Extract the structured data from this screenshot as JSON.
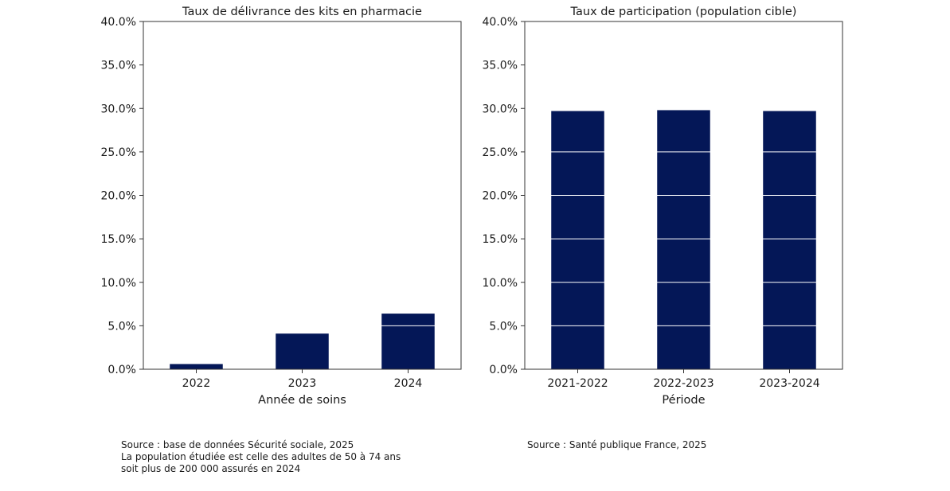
{
  "colors": {
    "bar": "#041757",
    "axis": "#333333",
    "grid_on_bar": "#ffffff"
  },
  "chart_data": [
    {
      "type": "bar",
      "title": "Taux de délivrance des kits en pharmacie",
      "xlabel": "Année de soins",
      "ylabel": "",
      "categories": [
        "2022",
        "2023",
        "2024"
      ],
      "values": [
        0.6,
        4.1,
        6.4
      ],
      "ylim": [
        0,
        40
      ],
      "yticks": [
        0,
        5,
        10,
        15,
        20,
        25,
        30,
        35,
        40
      ],
      "ytick_labels": [
        "0.0%",
        "5.0%",
        "10.0%",
        "15.0%",
        "20.0%",
        "25.0%",
        "30.0%",
        "35.0%",
        "40.0%"
      ],
      "grid": "y-lines visible over bars"
    },
    {
      "type": "bar",
      "title": "Taux de participation (population cible)",
      "xlabel": "Période",
      "ylabel": "",
      "categories": [
        "2021-2022",
        "2022-2023",
        "2023-2024"
      ],
      "values": [
        29.7,
        29.8,
        29.7
      ],
      "ylim": [
        0,
        40
      ],
      "yticks": [
        0,
        5,
        10,
        15,
        20,
        25,
        30,
        35,
        40
      ],
      "ytick_labels": [
        "0.0%",
        "5.0%",
        "10.0%",
        "15.0%",
        "20.0%",
        "25.0%",
        "30.0%",
        "35.0%",
        "40.0%"
      ],
      "grid": "y-lines visible over bars"
    }
  ],
  "notes": {
    "left": [
      "Source : base de données Sécurité sociale, 2025",
      "La population étudiée est celle des adultes de 50 à 74 ans",
      "soit plus de 200 000 assurés en 2024"
    ],
    "right": [
      "Source : Santé publique France, 2025"
    ]
  }
}
